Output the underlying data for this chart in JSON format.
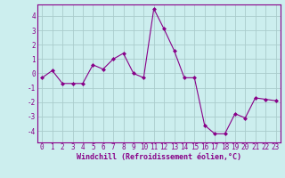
{
  "x": [
    0,
    1,
    2,
    3,
    4,
    5,
    6,
    7,
    8,
    9,
    10,
    11,
    12,
    13,
    14,
    15,
    16,
    17,
    18,
    19,
    20,
    21,
    22,
    23
  ],
  "y": [
    -0.3,
    0.2,
    -0.7,
    -0.7,
    -0.7,
    0.6,
    0.3,
    1.0,
    1.4,
    0.0,
    -0.3,
    4.5,
    3.1,
    1.6,
    -0.3,
    -0.3,
    -3.6,
    -4.2,
    -4.2,
    -2.8,
    -3.1,
    -1.7,
    -1.8,
    -1.9
  ],
  "line_color": "#880088",
  "marker": "D",
  "marker_size": 2.0,
  "bg_color": "#cceeee",
  "grid_color": "#aacccc",
  "xlabel": "Windchill (Refroidissement éolien,°C)",
  "xlabel_fontsize": 6.0,
  "tick_fontsize": 5.5,
  "ylim": [
    -4.8,
    4.8
  ],
  "xlim": [
    -0.5,
    23.5
  ],
  "yticks": [
    -4,
    -3,
    -2,
    -1,
    0,
    1,
    2,
    3,
    4
  ],
  "xticks": [
    0,
    1,
    2,
    3,
    4,
    5,
    6,
    7,
    8,
    9,
    10,
    11,
    12,
    13,
    14,
    15,
    16,
    17,
    18,
    19,
    20,
    21,
    22,
    23
  ]
}
